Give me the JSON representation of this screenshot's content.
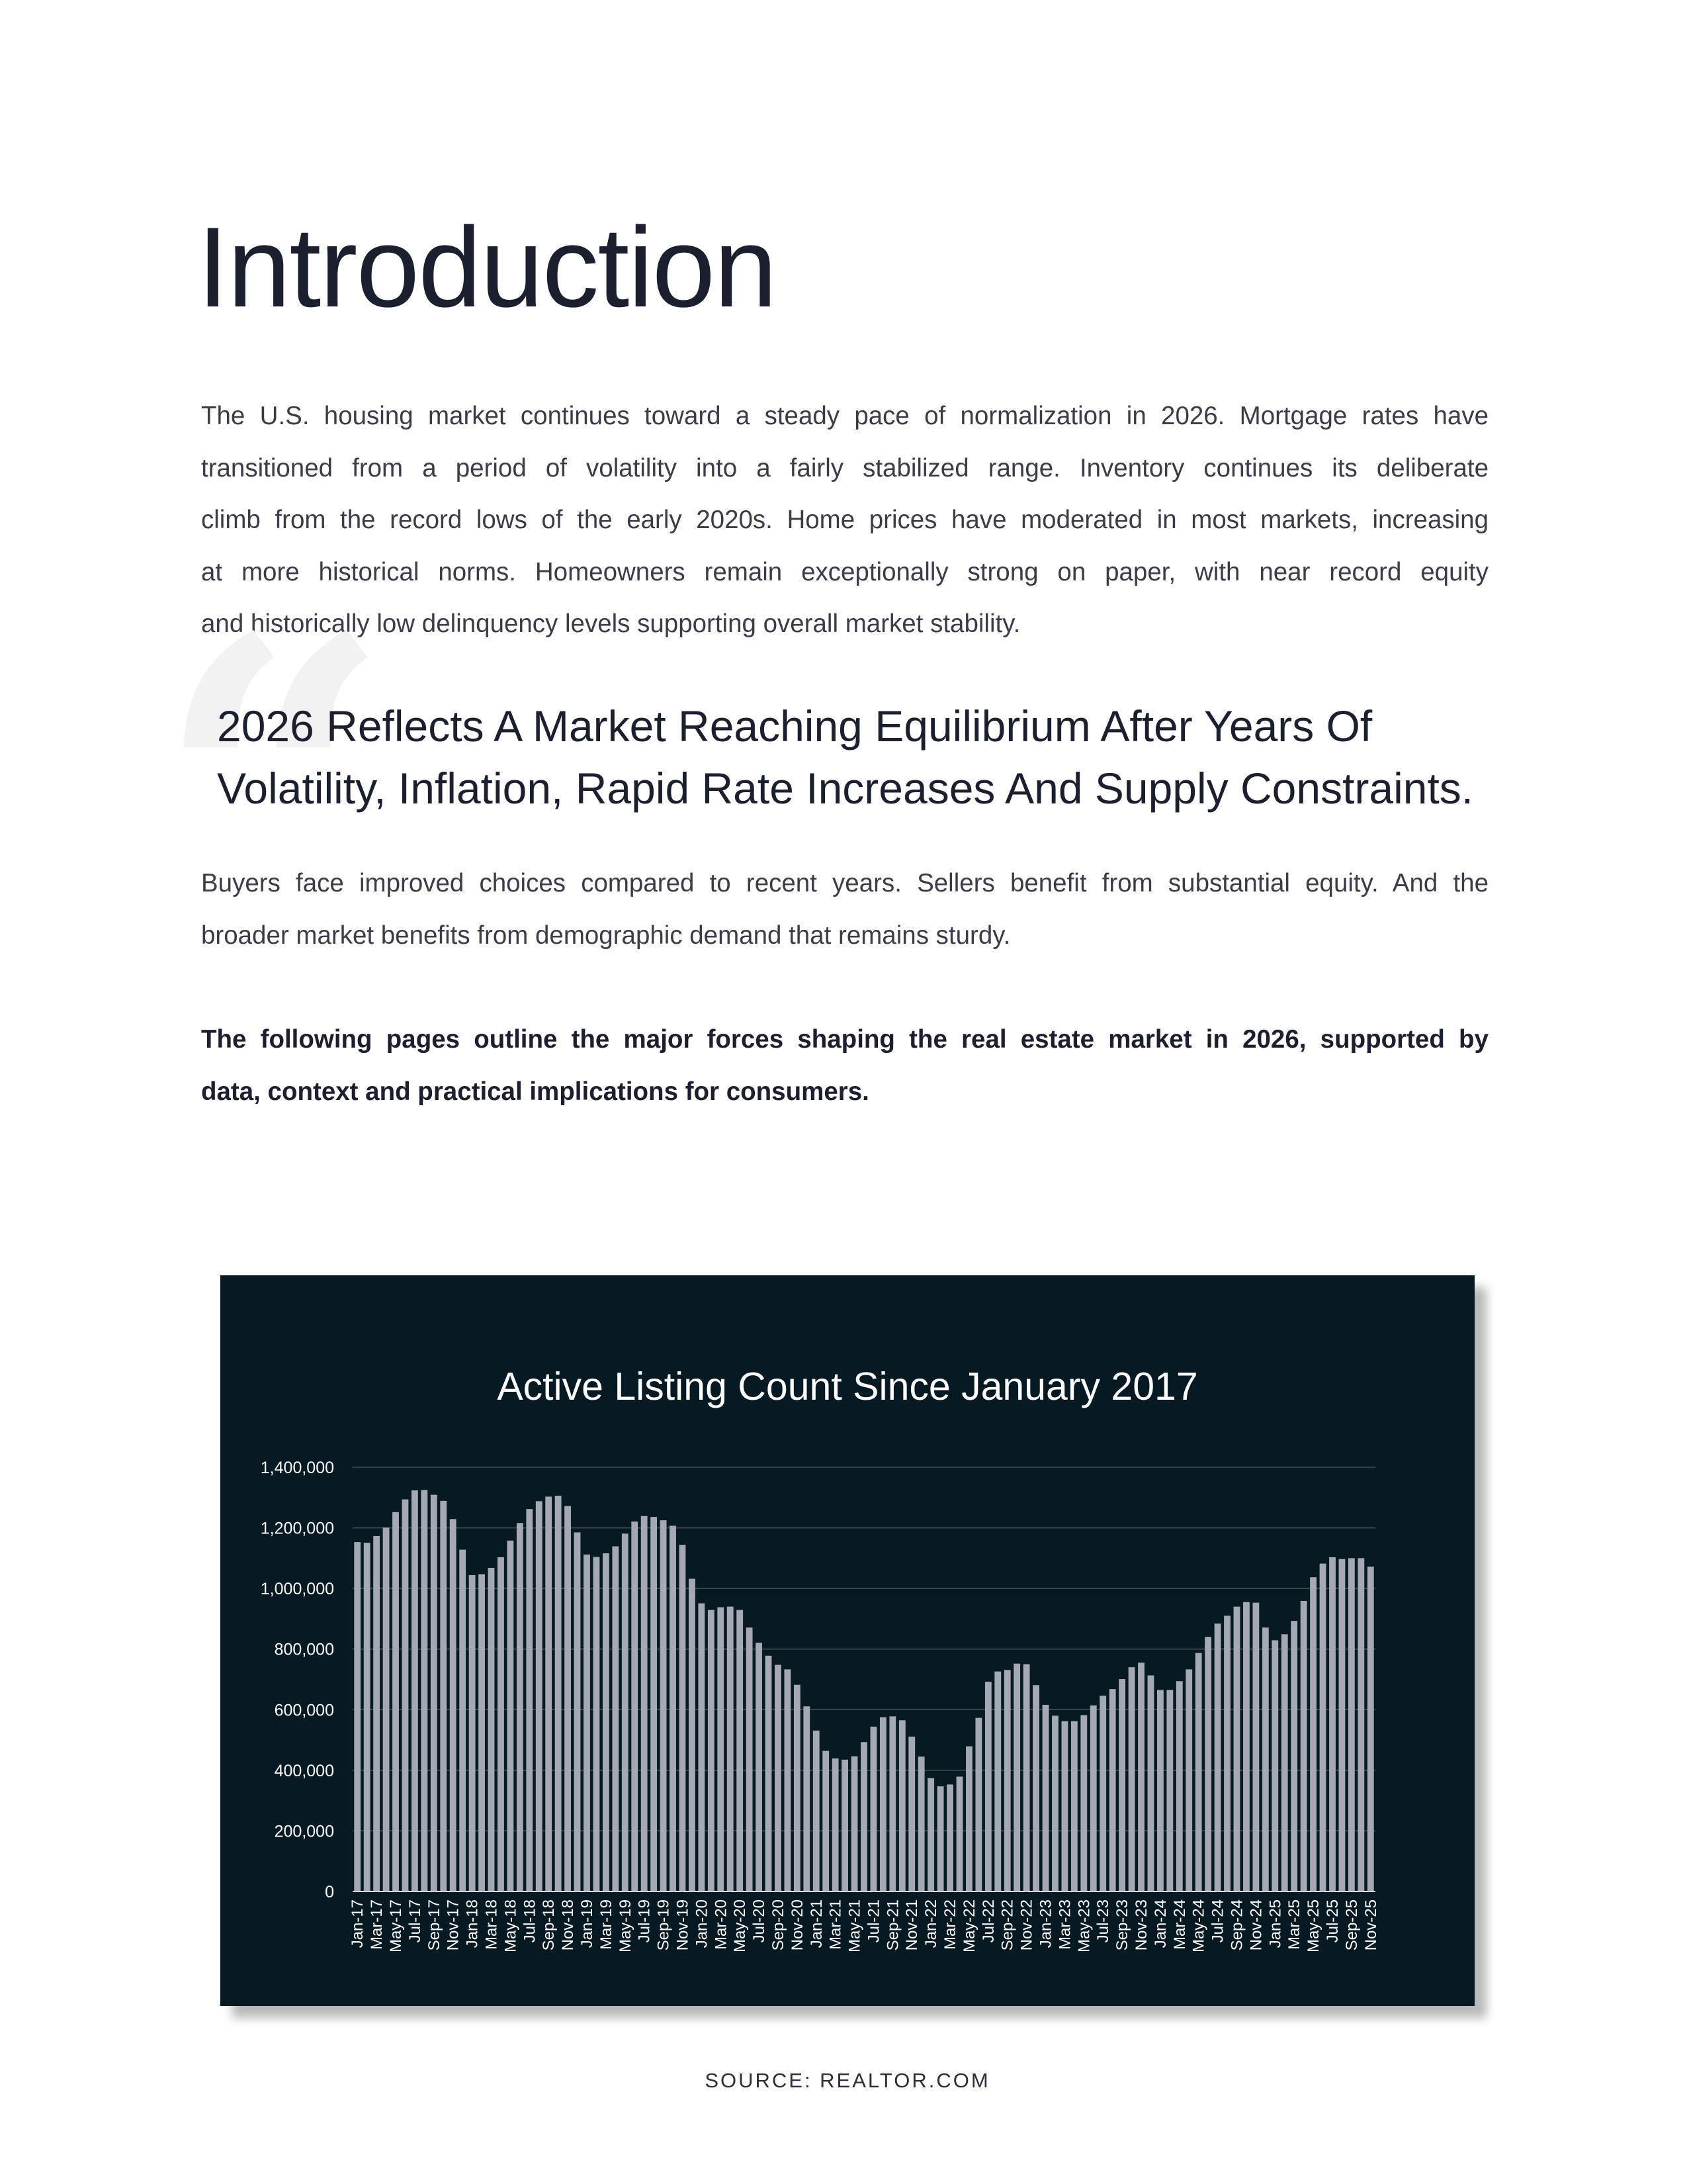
{
  "page": {
    "title": "Introduction",
    "intro_lines": [
      "The U.S. housing market continues toward a steady pace of normalization in 2026. Mortgage rates have",
      "transitioned from a period of volatility into a fairly stabilized range. Inventory continues its deliberate",
      "climb from the record lows of the early 2020s. Home prices have moderated in most markets, increasing",
      "at more historical norms. Homeowners remain exceptionally strong on paper, with near record equity",
      "and historically low delinquency levels supporting overall market stability."
    ],
    "quote": {
      "mark": "“",
      "emphasis": "2026 Reflects A Market Reaching Equilibrium",
      "rest_line1": " After Years Of",
      "line2": "Volatility, Inflation, Rapid Rate Increases And Supply Constraints."
    },
    "buyers_lines": [
      "Buyers face improved choices compared to recent years. Sellers benefit from substantial equity. And the",
      "broader market benefits from demographic demand that remains sturdy."
    ],
    "outline_lines": [
      "The following pages outline the major forces shaping the real estate market in 2026, supported by",
      "data, context and practical implications for consumers."
    ],
    "source": "SOURCE: REALTOR.COM"
  },
  "colors": {
    "chart_background": "#071923",
    "bar": "#a4a9b5",
    "gridline": "#4a5258",
    "text_dark": "#1c1f2e"
  },
  "chart_data": {
    "type": "bar",
    "title": "Active Listing Count Since January 2017",
    "xlabel": "",
    "ylabel": "",
    "ylim": [
      0,
      1400000
    ],
    "grid": true,
    "y_ticks": [
      0,
      200000,
      400000,
      600000,
      800000,
      1000000,
      1200000,
      1400000
    ],
    "y_tick_labels": [
      "0",
      "200,000",
      "400,000",
      "600,000",
      "800,000",
      "1,000,000",
      "1,200,000",
      "1,400,000"
    ],
    "x_tick_labels": [
      "Jan-17",
      "Mar-17",
      "May-17",
      "Jul-17",
      "Sep-17",
      "Nov-17",
      "Jan-18",
      "Mar-18",
      "May-18",
      "Jul-18",
      "Sep-18",
      "Nov-18",
      "Jan-19",
      "Mar-19",
      "May-19",
      "Jul-19",
      "Sep-19",
      "Nov-19",
      "Jan-20",
      "Mar-20",
      "May-20",
      "Jul-20",
      "Sep-20",
      "Nov-20",
      "Jan-21",
      "Mar-21",
      "May-21",
      "Jul-21",
      "Sep-21",
      "Nov-21",
      "Jan-22",
      "Mar-22",
      "May-22",
      "Jul-22",
      "Sep-22",
      "Nov-22",
      "Jan-23",
      "Mar-23",
      "May-23",
      "Jul-23",
      "Sep-23",
      "Nov-23",
      "Jan-24",
      "Mar-24",
      "May-24",
      "Jul-24",
      "Sep-24",
      "Nov-24",
      "Jan-25",
      "Mar-25",
      "May-25",
      "Jul-25",
      "Sep-25",
      "Nov-25"
    ],
    "values": [
      1153000,
      1151000,
      1173000,
      1201000,
      1252000,
      1294000,
      1324000,
      1325000,
      1309000,
      1289000,
      1229000,
      1128000,
      1044000,
      1047000,
      1068000,
      1103000,
      1158000,
      1216000,
      1262000,
      1288000,
      1303000,
      1306000,
      1272000,
      1185000,
      1112000,
      1104000,
      1116000,
      1139000,
      1181000,
      1221000,
      1239000,
      1236000,
      1225000,
      1207000,
      1144000,
      1032000,
      951000,
      929000,
      938000,
      940000,
      929000,
      871000,
      821000,
      778000,
      748000,
      733000,
      682000,
      611000,
      531000,
      464000,
      439000,
      435000,
      446000,
      493000,
      544000,
      575000,
      578000,
      565000,
      511000,
      445000,
      374000,
      347000,
      353000,
      379000,
      479000,
      573000,
      692000,
      726000,
      731000,
      752000,
      750000,
      681000,
      616000,
      580000,
      562000,
      562000,
      582000,
      614000,
      646000,
      668000,
      701000,
      740000,
      755000,
      713000,
      665000,
      665000,
      694000,
      733000,
      787000,
      840000,
      884000,
      910000,
      940000,
      955000,
      953000,
      871000,
      829000,
      849000,
      893000,
      959000,
      1037000,
      1082000,
      1103000,
      1097000,
      1100000,
      1100000,
      1072000
    ]
  }
}
